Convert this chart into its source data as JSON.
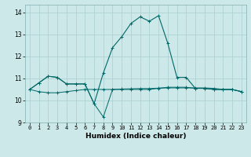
{
  "title": "",
  "xlabel": "Humidex (Indice chaleur)",
  "ylabel": "",
  "xlim": [
    -0.5,
    23.5
  ],
  "ylim": [
    9.0,
    14.35
  ],
  "yticks": [
    9,
    10,
    11,
    12,
    13,
    14
  ],
  "xticks": [
    0,
    1,
    2,
    3,
    4,
    5,
    6,
    7,
    8,
    9,
    10,
    11,
    12,
    13,
    14,
    15,
    16,
    17,
    18,
    19,
    20,
    21,
    22,
    23
  ],
  "bg_color": "#cce8e8",
  "grid_color": "#aacece",
  "line_color": "#006868",
  "series1_y": [
    10.5,
    10.8,
    11.1,
    11.05,
    10.75,
    10.75,
    10.75,
    9.85,
    9.25,
    10.5,
    10.5,
    10.5,
    10.5,
    10.5,
    10.55,
    10.6,
    10.6,
    10.6,
    10.55,
    10.55,
    10.5,
    10.5,
    10.5,
    10.4
  ],
  "series2_y": [
    10.5,
    10.4,
    10.35,
    10.35,
    10.4,
    10.45,
    10.5,
    10.5,
    10.5,
    10.5,
    10.52,
    10.53,
    10.54,
    10.54,
    10.56,
    10.57,
    10.57,
    10.57,
    10.57,
    10.57,
    10.55,
    10.5,
    10.5,
    10.4
  ],
  "series3_y": [
    10.5,
    10.8,
    11.1,
    11.05,
    10.75,
    10.75,
    10.75,
    9.85,
    11.25,
    12.4,
    12.9,
    13.5,
    13.8,
    13.6,
    13.85,
    12.6,
    11.05,
    11.05,
    10.55,
    10.55,
    10.5,
    10.5,
    10.5,
    10.4
  ],
  "tick_fontsize": 5.0,
  "xlabel_fontsize": 6.5
}
